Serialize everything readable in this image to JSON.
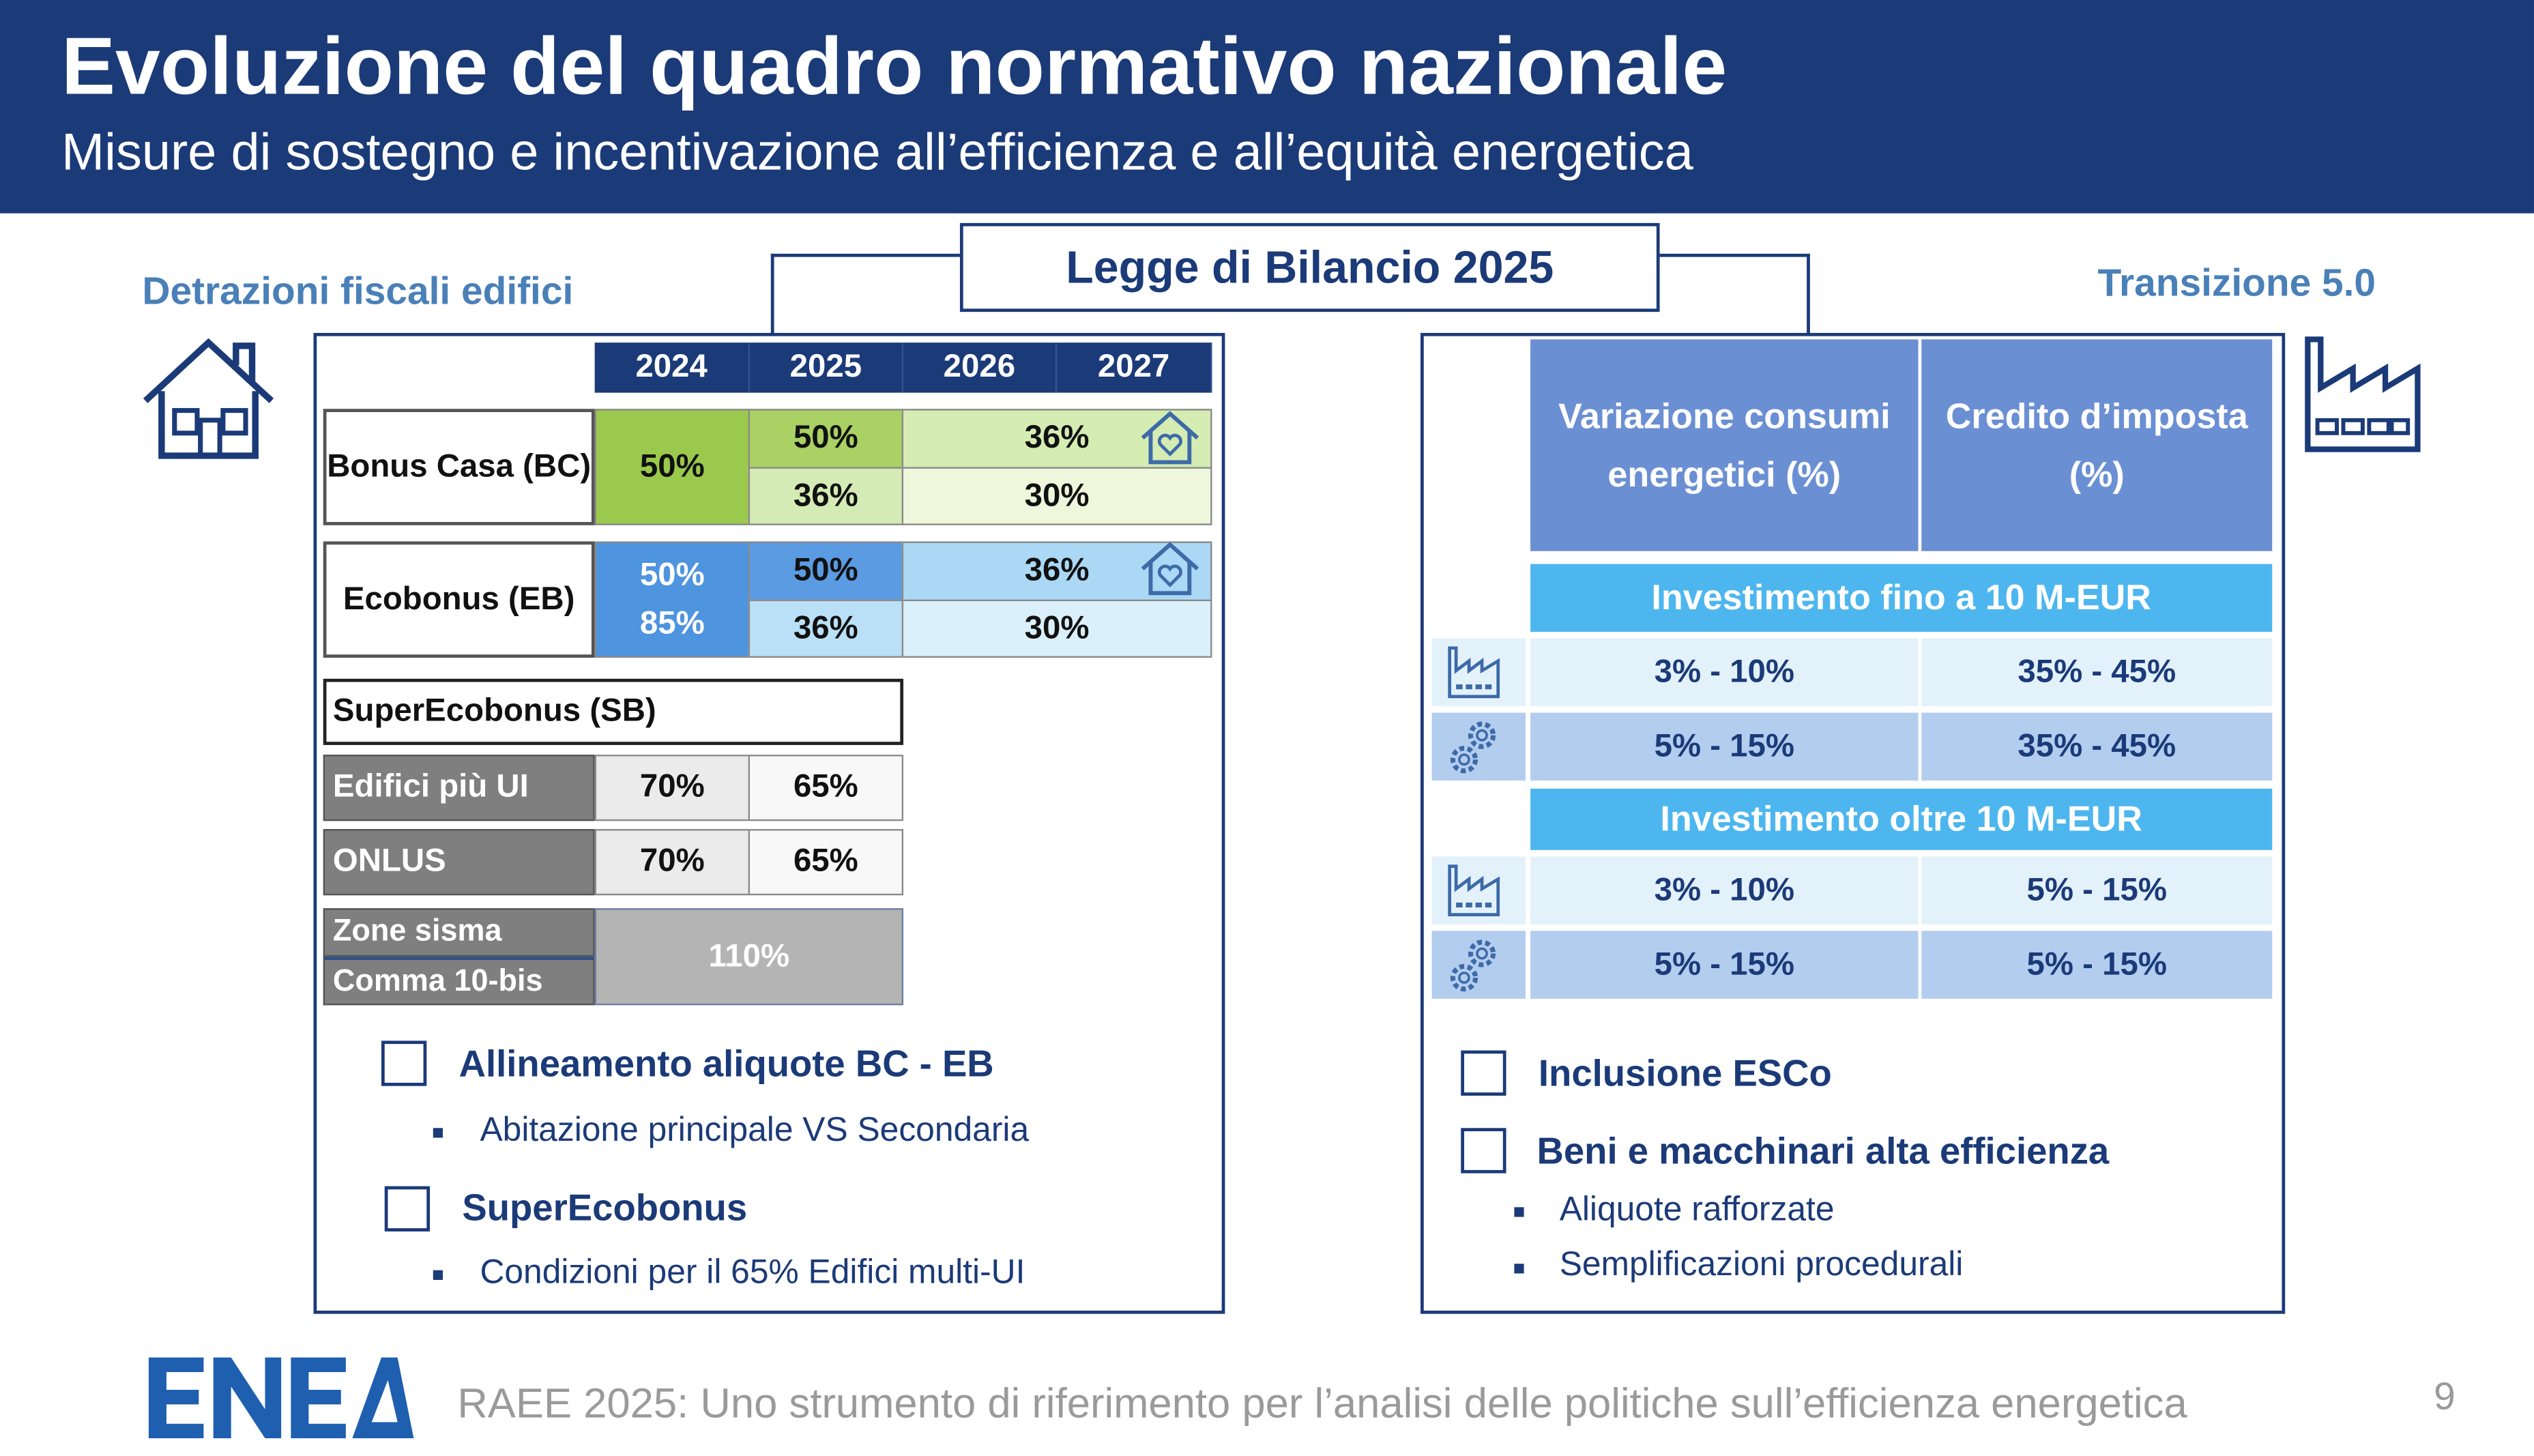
{
  "header": {
    "title": "Evoluzione del quadro normativo nazionale",
    "subtitle": "Misure di sostegno e incentivazione all’efficienza e all’equità energetica"
  },
  "center_label": "Legge di Bilancio 2025",
  "left": {
    "section_title": "Detrazioni fiscali edifici",
    "icon": "house-icon",
    "years": [
      "2024",
      "2025",
      "2026",
      "2027"
    ],
    "bonus_casa": {
      "label": "Bonus Casa (BC)",
      "v2024": "50%",
      "v2025_top": "50%",
      "v2025_bottom": "36%",
      "v2026_27_top": "36%",
      "v2026_27_bottom": "30%"
    },
    "ecobonus": {
      "label": "Ecobonus (EB)",
      "v2024_a": "50%",
      "v2024_b": "85%",
      "v2025_top": "50%",
      "v2025_bottom": "36%",
      "v2026_27_top": "36%",
      "v2026_27_bottom": "30%"
    },
    "superecobonus": {
      "label": "SuperEcobonus (SB)",
      "rows": [
        {
          "label": "Edifici più UI",
          "v2024": "70%",
          "v2025": "65%"
        },
        {
          "label": "ONLUS",
          "v2024": "70%",
          "v2025": "65%"
        }
      ],
      "zone_label_1": "Zone sisma",
      "zone_label_2": "Comma 10-bis",
      "zone_value": "110%"
    },
    "checks": [
      {
        "label": "Allineamento aliquote BC - EB",
        "bullet": "Abitazione principale VS Secondaria"
      },
      {
        "label": "SuperEcobonus",
        "bullet": "Condizioni per il 65% Edifici multi-UI"
      }
    ]
  },
  "right": {
    "section_title": "Transizione 5.0",
    "icon": "factory-icon",
    "headers": [
      "Variazione consumi energetici (%)",
      "Credito d’imposta (%)"
    ],
    "groups": [
      {
        "label": "Investimento fino a 10 M-EUR",
        "rows": [
          {
            "icon": "factory-icon",
            "var": "3% - 10%",
            "credit": "35% - 45%"
          },
          {
            "icon": "gears-icon",
            "var": "5% - 15%",
            "credit": "35% - 45%"
          }
        ]
      },
      {
        "label": "Investimento oltre 10 M-EUR",
        "rows": [
          {
            "icon": "factory-icon",
            "var": "3% - 10%",
            "credit": "5% - 15%"
          },
          {
            "icon": "gears-icon",
            "var": "5% - 15%",
            "credit": "5% - 15%"
          }
        ]
      }
    ],
    "checks": [
      {
        "label": "Inclusione ESCo"
      },
      {
        "label": "Beni e macchinari alta efficienza",
        "bullets": [
          "Aliquote rafforzate",
          "Semplificazioni procedurali"
        ]
      }
    ]
  },
  "footer": {
    "logo": "ENEA",
    "text": "RAEE 2025: Uno strumento di riferimento per l’analisi delle politiche sull’efficienza energetica",
    "page": "9"
  },
  "colors": {
    "navy": "#1b3a78",
    "green": "#9bc94e",
    "blue": "#4e94df",
    "light_blue": "#4db6ee"
  }
}
